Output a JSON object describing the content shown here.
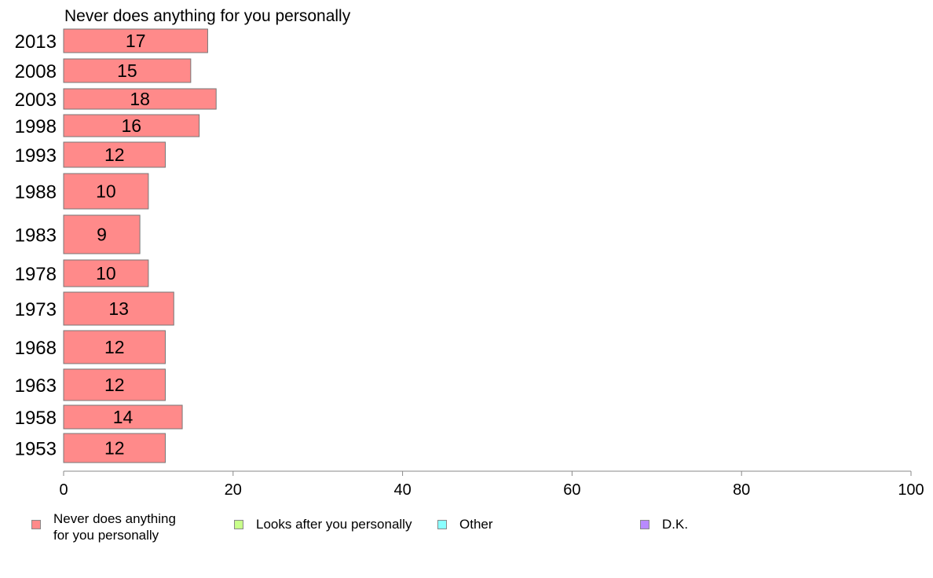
{
  "chart_data": {
    "type": "bar",
    "orientation": "horizontal",
    "title": "Never does anything for you personally",
    "categories": [
      "2013",
      "2008",
      "2003",
      "1998",
      "1993",
      "1988",
      "1983",
      "1978",
      "1973",
      "1968",
      "1963",
      "1958",
      "1953"
    ],
    "series": [
      {
        "name": "Never does anything\nfor you personally",
        "values": [
          17,
          15,
          18,
          16,
          12,
          10,
          9,
          10,
          13,
          12,
          12,
          14,
          12
        ],
        "color": "#ff8a8a"
      }
    ],
    "data_labels": [
      "17",
      "15",
      "18",
      "16",
      "12",
      "10",
      "9",
      "10",
      "13",
      "12",
      "12",
      "14",
      "12"
    ],
    "xlim": [
      0,
      100
    ],
    "xticks": [
      "0",
      "20",
      "40",
      "60",
      "80",
      "100"
    ],
    "grid": false,
    "legend_position": "bottom",
    "legend": [
      {
        "label": "Never does anything\nfor you personally",
        "color": "#ff8a8a"
      },
      {
        "label": "Looks after you personally",
        "color": "#c8ff8a"
      },
      {
        "label": "Other",
        "color": "#8affff"
      },
      {
        "label": "D.K.",
        "color": "#b88aff"
      }
    ]
  }
}
